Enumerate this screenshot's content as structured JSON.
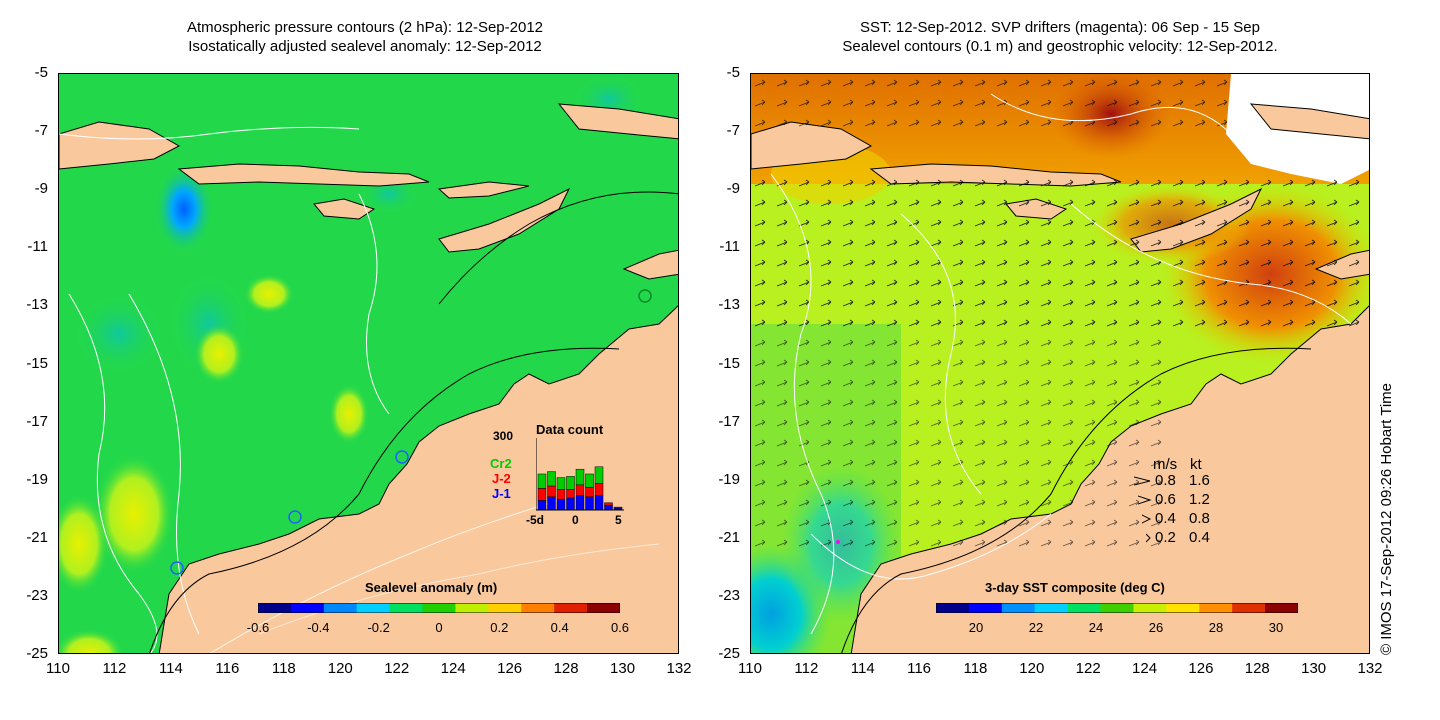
{
  "left_panel": {
    "title_line1": "Atmospheric pressure contours (2 hPa): 12-Sep-2012",
    "title_line2": "Isostatically adjusted sealevel anomaly: 12-Sep-2012",
    "colorbar": {
      "label": "Sealevel anomaly (m)",
      "ticks": [
        "-0.6",
        "-0.4",
        "-0.2",
        "0",
        "0.2",
        "0.4",
        "0.6"
      ],
      "colors": [
        "#00008b",
        "#0000ff",
        "#0088ff",
        "#00d0ff",
        "#00e060",
        "#20d000",
        "#c0f000",
        "#ffd000",
        "#ff8000",
        "#e02000",
        "#8b0000"
      ]
    },
    "data_count": {
      "title": "Data count",
      "max_label": "300",
      "x_ticks": [
        "-5d",
        "0",
        "5"
      ],
      "missions": [
        {
          "name": "Cr2",
          "color": "#00cc00"
        },
        {
          "name": "J-2",
          "color": "#ff0000"
        },
        {
          "name": "J-1",
          "color": "#0000ff"
        }
      ],
      "bars": [
        {
          "j1": 40,
          "j2": 50,
          "cr2": 60
        },
        {
          "j1": 55,
          "j2": 45,
          "cr2": 60
        },
        {
          "j1": 45,
          "j2": 40,
          "cr2": 50
        },
        {
          "j1": 50,
          "j2": 35,
          "cr2": 55
        },
        {
          "j1": 60,
          "j2": 45,
          "cr2": 65
        },
        {
          "j1": 55,
          "j2": 40,
          "cr2": 55
        },
        {
          "j1": 60,
          "j2": 50,
          "cr2": 70
        },
        {
          "j1": 20,
          "j2": 10,
          "cr2": 0
        },
        {
          "j1": 8,
          "j2": 4,
          "cr2": 0
        }
      ]
    }
  },
  "right_panel": {
    "title_line1": "SST: 12-Sep-2012. SVP drifters (magenta): 06 Sep - 15 Sep",
    "title_line2": "Sealevel contours (0.1 m) and geostrophic velocity: 12-Sep-2012.",
    "colorbar": {
      "label": "3-day SST composite (deg C)",
      "ticks": [
        "20",
        "22",
        "24",
        "26",
        "28",
        "30"
      ],
      "colors": [
        "#00008b",
        "#0000ff",
        "#0090ff",
        "#00d0ff",
        "#00e060",
        "#40d000",
        "#c8f000",
        "#ffe000",
        "#ff9000",
        "#e03000",
        "#8b0000"
      ]
    },
    "velocity_legend": {
      "header": [
        "m/s",
        "kt"
      ],
      "rows": [
        {
          "ms": "0.8",
          "kt": "1.6"
        },
        {
          "ms": "0.6",
          "kt": "1.2"
        },
        {
          "ms": "0.4",
          "kt": "0.8"
        },
        {
          "ms": "0.2",
          "kt": "0.4"
        }
      ]
    }
  },
  "axes": {
    "y_ticks": [
      "-5",
      "-7",
      "-9",
      "-11",
      "-13",
      "-15",
      "-17",
      "-19",
      "-21",
      "-23",
      "-25"
    ],
    "x_ticks": [
      "110",
      "112",
      "114",
      "116",
      "118",
      "120",
      "122",
      "124",
      "126",
      "128",
      "130",
      "132"
    ]
  },
  "credit": "© IMOS 17-Sep-2012 09:26 Hobart Time",
  "colors": {
    "land": "#f9c99d",
    "ocean_left": "#22d84a",
    "ocean_right": "#b8f020"
  }
}
